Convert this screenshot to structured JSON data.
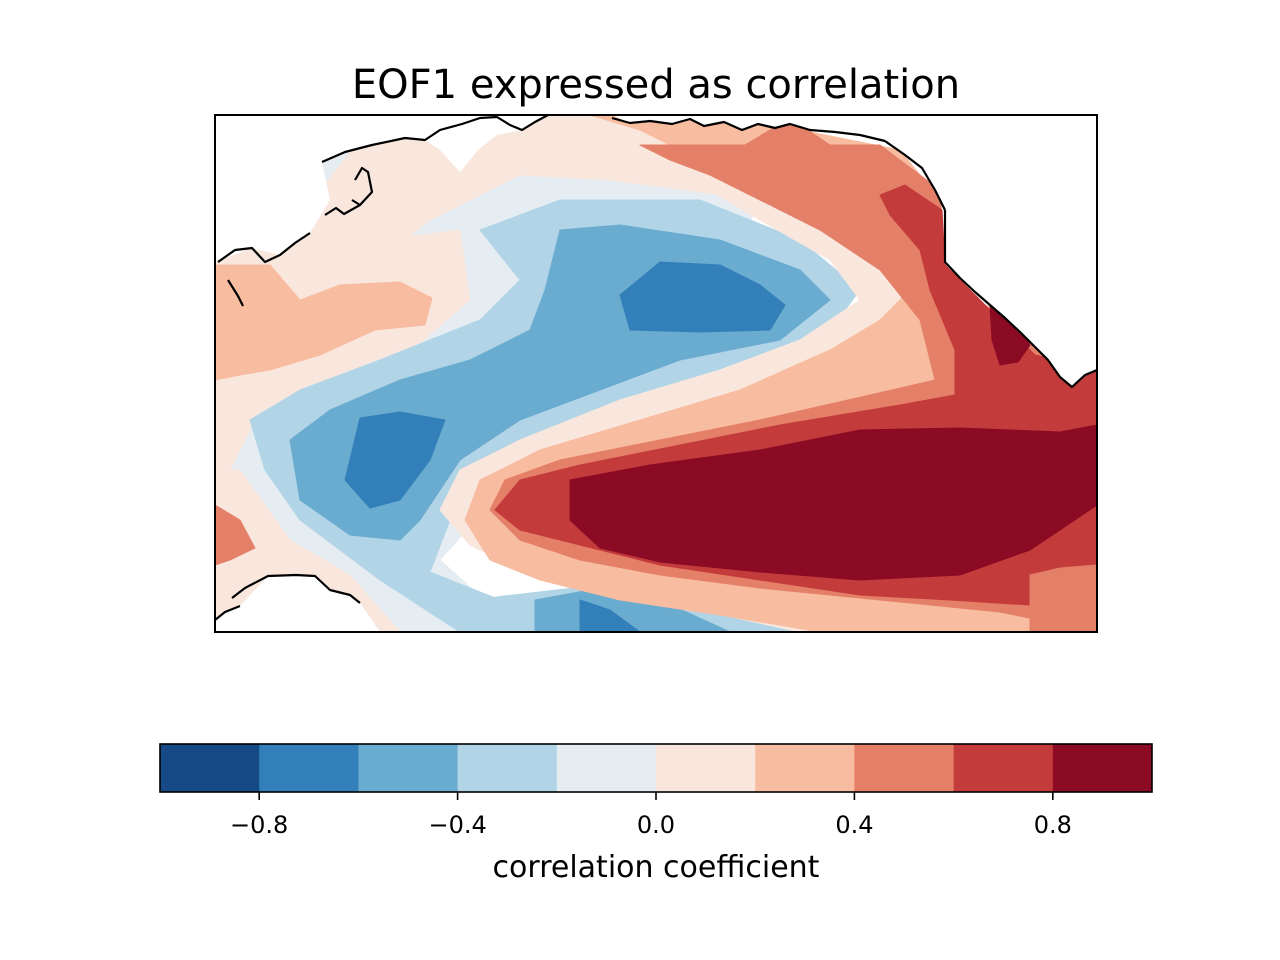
{
  "chart_data": {
    "type": "heatmap",
    "title": "EOF1 expressed as correlation",
    "projection": "North Pacific map with coastlines (filled contour)",
    "colorbar": {
      "label": "correlation coefficient",
      "levels": [
        -1.0,
        -0.8,
        -0.6,
        -0.4,
        -0.2,
        0.0,
        0.2,
        0.4,
        0.6,
        0.8,
        1.0
      ],
      "colors": [
        "#164a84",
        "#327fb9",
        "#6aacd0",
        "#b2d4e7",
        "#e5edf3",
        "#f9e7de",
        "#f8bca1",
        "#e48068",
        "#c43b3c",
        "#8b0b24"
      ],
      "tick_values": [
        -0.8,
        -0.4,
        0.0,
        0.4,
        0.8
      ],
      "tick_labels": [
        "−0.8",
        "−0.4",
        "0.0",
        "0.4",
        "0.8"
      ],
      "orientation": "horizontal",
      "placement": "bottom"
    },
    "regions": [
      {
        "name": "west-pacific-negative-core",
        "value": -0.7
      },
      {
        "name": "central-north-pacific-negative-core",
        "value": -0.7
      },
      {
        "name": "eastern-subtropical-positive-core",
        "value": 0.9
      },
      {
        "name": "gulf-of-alaska-positive-core",
        "value": 0.9
      },
      {
        "name": "tropical-negative-patch",
        "value": -0.7
      }
    ]
  }
}
